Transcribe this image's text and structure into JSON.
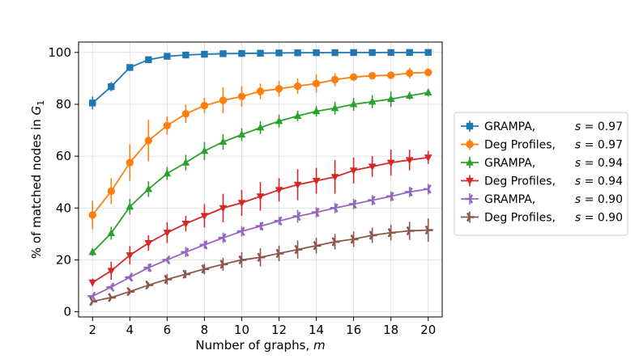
{
  "chart_data": {
    "type": "line",
    "title": "",
    "xlabel": "Number of graphs, ",
    "xlabel_var": "m",
    "ylabel": "% of matched nodes in ",
    "ylabel_var": "G",
    "ylabel_sub": "1",
    "xlim": [
      1.25,
      20.75
    ],
    "ylim": [
      -2,
      104
    ],
    "xticks": [
      2,
      4,
      6,
      8,
      10,
      12,
      14,
      16,
      18,
      20
    ],
    "yticks": [
      0,
      20,
      40,
      60,
      80,
      100
    ],
    "grid": true,
    "legend_position": "right-outside",
    "x": [
      2,
      3,
      4,
      5,
      6,
      7,
      8,
      9,
      10,
      11,
      12,
      13,
      14,
      15,
      16,
      17,
      18,
      19,
      20
    ],
    "series": [
      {
        "name": "GRAMPA,",
        "s_label": "s = 0.97",
        "color": "#1f77b4",
        "marker": "square",
        "values": [
          80.5,
          86.8,
          94.2,
          97.2,
          98.5,
          99.0,
          99.3,
          99.5,
          99.6,
          99.7,
          99.8,
          99.85,
          99.9,
          99.9,
          99.95,
          99.95,
          99.95,
          100,
          100
        ],
        "err": [
          2.5,
          1.8,
          0.8,
          0.6,
          0.4,
          0.3,
          0.2,
          0.2,
          0.2,
          0.1,
          0.1,
          0.1,
          0.1,
          0.1,
          0.1,
          0.1,
          0.1,
          0.1,
          0.1
        ]
      },
      {
        "name": "Deg Profiles,",
        "s_label": "s = 0.97",
        "color": "#ff7f0e",
        "marker": "circle",
        "values": [
          37.3,
          46.5,
          57.5,
          66.0,
          71.8,
          76.3,
          79.5,
          81.5,
          83.0,
          85.0,
          86.0,
          87.0,
          88.0,
          89.5,
          90.5,
          91.0,
          91.2,
          92.0,
          92.3
        ],
        "err": [
          5.5,
          5.0,
          7.0,
          8.0,
          3.5,
          3.5,
          3.0,
          5.0,
          4.0,
          3.0,
          3.0,
          3.0,
          3.5,
          2.5,
          1.5,
          1.2,
          1.2,
          2.0,
          1.5
        ]
      },
      {
        "name": "GRAMPA,",
        "s_label": "s = 0.94",
        "color": "#2ca02c",
        "marker": "triangle-up",
        "values": [
          23.0,
          30.3,
          40.5,
          47.3,
          53.3,
          57.5,
          62.0,
          65.5,
          68.3,
          71.0,
          73.5,
          75.5,
          77.3,
          78.5,
          80.0,
          81.0,
          82.0,
          83.3,
          84.5
        ],
        "err": [
          1.5,
          2.5,
          3.0,
          3.0,
          2.5,
          3.0,
          3.5,
          3.0,
          2.5,
          2.5,
          2.5,
          2.0,
          2.0,
          2.5,
          2.5,
          2.5,
          3.0,
          1.5,
          1.5
        ]
      },
      {
        "name": "Deg Profiles,",
        "s_label": "s = 0.94",
        "color": "#d62728",
        "marker": "triangle-down",
        "values": [
          11.3,
          15.8,
          21.8,
          26.5,
          30.5,
          34.0,
          37.0,
          40.0,
          42.0,
          44.5,
          47.0,
          49.0,
          50.5,
          52.0,
          54.5,
          56.0,
          57.5,
          58.5,
          59.5
        ],
        "err": [
          1.5,
          3.5,
          3.5,
          3.0,
          4.0,
          3.0,
          4.5,
          5.5,
          5.0,
          5.5,
          4.5,
          6.0,
          5.0,
          6.5,
          5.0,
          4.0,
          5.0,
          4.0,
          2.5
        ]
      },
      {
        "name": "GRAMPA,",
        "s_label": "s = 0.90",
        "color": "#9467bd",
        "marker": "tri-left",
        "values": [
          6.0,
          9.5,
          13.3,
          17.0,
          20.0,
          23.0,
          25.8,
          28.5,
          31.0,
          33.0,
          35.0,
          36.8,
          38.3,
          40.0,
          41.5,
          43.0,
          44.5,
          46.2,
          47.3
        ],
        "err": [
          0.5,
          1.0,
          1.0,
          1.5,
          1.0,
          2.0,
          1.5,
          2.0,
          2.0,
          1.5,
          1.5,
          2.5,
          2.0,
          2.0,
          2.0,
          2.0,
          2.0,
          2.0,
          2.0
        ]
      },
      {
        "name": "Deg Profiles,",
        "s_label": "s = 0.90",
        "color": "#8c564b",
        "marker": "tri-right",
        "values": [
          4.0,
          5.5,
          7.8,
          10.3,
          12.5,
          14.5,
          16.5,
          18.3,
          20.0,
          21.0,
          22.5,
          24.0,
          25.5,
          27.0,
          28.0,
          29.5,
          30.5,
          31.2,
          31.5
        ],
        "err": [
          0.3,
          0.5,
          1.0,
          1.0,
          2.0,
          1.5,
          2.0,
          2.5,
          3.0,
          3.5,
          3.0,
          3.5,
          3.0,
          3.0,
          3.0,
          3.0,
          3.0,
          3.5,
          4.5
        ]
      }
    ]
  }
}
